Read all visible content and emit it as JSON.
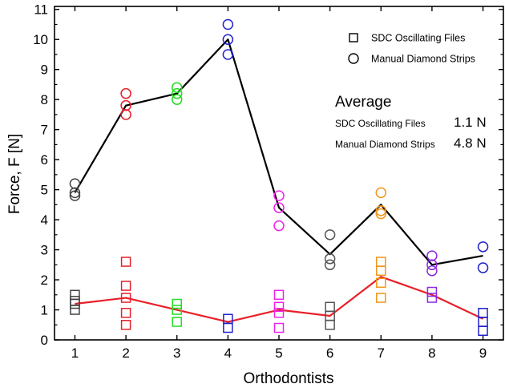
{
  "chart_data": {
    "type": "scatter",
    "xlabel": "Orthodontists",
    "ylabel": "Force, F [N]",
    "xlim": [
      0.6,
      9.4
    ],
    "ylim": [
      0,
      11.1
    ],
    "x_ticks": [
      1,
      2,
      3,
      4,
      5,
      6,
      7,
      8,
      9
    ],
    "y_ticks": [
      0,
      1,
      2,
      3,
      4,
      5,
      6,
      7,
      8,
      9,
      10,
      11
    ],
    "grid": false,
    "legend_position": "top-right",
    "point_colors": [
      "#444444",
      "#e8202a",
      "#22dd22",
      "#2222cc",
      "#ee22ee",
      "#555555",
      "#f39419",
      "#8a2be2",
      "#2222cc"
    ],
    "series": [
      {
        "name": "SDC Oscillating Files",
        "marker": "square",
        "line_color": "#e8202a",
        "points": [
          {
            "x": 1,
            "y": [
              1.0,
              1.2,
              1.3,
              1.5
            ]
          },
          {
            "x": 2,
            "y": [
              0.5,
              0.9,
              1.4,
              1.8,
              2.6
            ]
          },
          {
            "x": 3,
            "y": [
              0.6,
              1.0,
              1.2
            ]
          },
          {
            "x": 4,
            "y": [
              0.4,
              0.7
            ]
          },
          {
            "x": 5,
            "y": [
              0.4,
              0.9,
              1.1,
              1.5
            ]
          },
          {
            "x": 6,
            "y": [
              0.5,
              0.8,
              1.1
            ]
          },
          {
            "x": 7,
            "y": [
              1.4,
              1.9,
              2.3,
              2.6
            ]
          },
          {
            "x": 8,
            "y": [
              1.4,
              1.6
            ]
          },
          {
            "x": 9,
            "y": [
              0.3,
              0.6,
              0.9
            ]
          }
        ],
        "average_line": [
          1.2,
          1.4,
          1.0,
          0.6,
          1.0,
          0.8,
          2.1,
          1.5,
          0.7
        ]
      },
      {
        "name": "Manual Diamond Strips",
        "marker": "circle",
        "line_color": "#000000",
        "points": [
          {
            "x": 1,
            "y": [
              4.8,
              4.9,
              5.2
            ]
          },
          {
            "x": 2,
            "y": [
              7.5,
              7.8,
              8.2
            ]
          },
          {
            "x": 3,
            "y": [
              8.0,
              8.2,
              8.4
            ]
          },
          {
            "x": 4,
            "y": [
              9.5,
              10.0,
              10.5
            ]
          },
          {
            "x": 5,
            "y": [
              3.8,
              4.4,
              4.8
            ]
          },
          {
            "x": 6,
            "y": [
              2.5,
              2.7,
              3.5
            ]
          },
          {
            "x": 7,
            "y": [
              4.2,
              4.3,
              4.9
            ]
          },
          {
            "x": 8,
            "y": [
              2.3,
              2.5,
              2.8
            ]
          },
          {
            "x": 9,
            "y": [
              2.4,
              3.1
            ]
          }
        ],
        "average_line": [
          4.9,
          7.8,
          8.2,
          10.0,
          4.4,
          2.85,
          4.5,
          2.5,
          2.8
        ]
      }
    ],
    "annotations": {
      "title": "Average",
      "rows": [
        {
          "name": "SDC Oscillating Files",
          "value": "1.1 N"
        },
        {
          "name": "Manual Diamond Strips",
          "value": "4.8 N"
        }
      ]
    }
  }
}
